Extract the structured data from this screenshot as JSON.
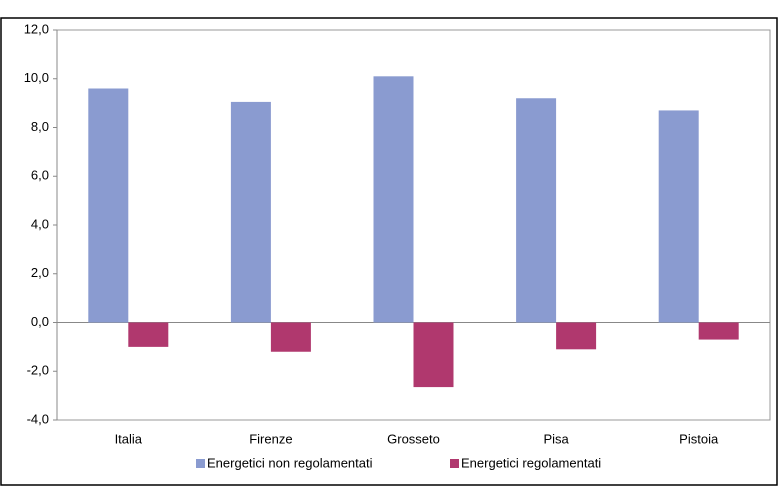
{
  "chart_data": {
    "type": "bar",
    "categories": [
      "Italia",
      "Firenze",
      "Grosseto",
      "Pisa",
      "Pistoia"
    ],
    "series": [
      {
        "name": "Energetici non regolamentati",
        "color": "#8a9bd0",
        "values": [
          9.6,
          9.05,
          10.1,
          9.2,
          8.7
        ]
      },
      {
        "name": "Energetici regolamentati",
        "color": "#b0386e",
        "values": [
          -1.0,
          -1.2,
          -2.65,
          -1.1,
          -0.7
        ]
      }
    ],
    "ylim": [
      -4,
      12
    ],
    "yticks": [
      {
        "value": -4,
        "label": "-4,0"
      },
      {
        "value": -2,
        "label": "-2,0"
      },
      {
        "value": 0,
        "label": "0,0"
      },
      {
        "value": 2,
        "label": "2,0"
      },
      {
        "value": 4,
        "label": "4,0"
      },
      {
        "value": 6,
        "label": "6,0"
      },
      {
        "value": 8,
        "label": "8,0"
      },
      {
        "value": 10,
        "label": "10,0"
      },
      {
        "value": 12,
        "label": "12,0"
      }
    ],
    "grid": false,
    "legend": "bottom"
  }
}
